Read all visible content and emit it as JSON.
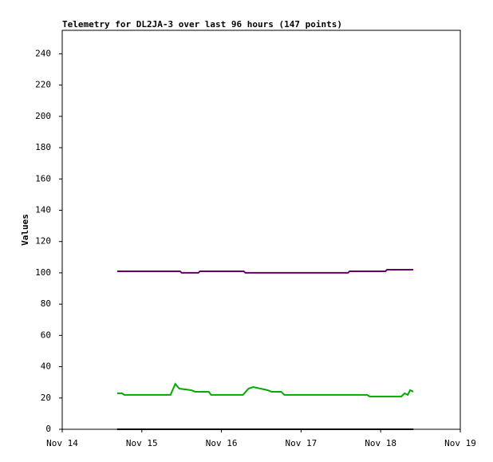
{
  "chart_data": {
    "type": "line",
    "title": "Telemetry for DL2JA-3 over last 96 hours (147 points)",
    "y_label": "Values",
    "xlim": [
      14,
      19
    ],
    "xticks": [
      {
        "value": 14,
        "label": "Nov 14"
      },
      {
        "value": 15,
        "label": "Nov 15"
      },
      {
        "value": 16,
        "label": "Nov 16"
      },
      {
        "value": 17,
        "label": "Nov 17"
      },
      {
        "value": 18,
        "label": "Nov 18"
      },
      {
        "value": 19,
        "label": "Nov 19"
      }
    ],
    "ylim": [
      0,
      255
    ],
    "yticks": [
      0,
      20,
      40,
      60,
      80,
      100,
      120,
      140,
      160,
      180,
      200,
      220,
      240
    ],
    "series": [
      {
        "color": "#660066",
        "x": [
          14.69,
          15.48,
          15.5,
          15.71,
          15.73,
          16.28,
          16.3,
          17.59,
          17.61,
          18.06,
          18.08,
          18.41
        ],
        "values": [
          101,
          101,
          100,
          100,
          101,
          101,
          100,
          100,
          101,
          101,
          102,
          102
        ]
      },
      {
        "color": "#00aa00",
        "x": [
          14.69,
          14.75,
          14.78,
          15.36,
          15.42,
          15.47,
          15.62,
          15.67,
          15.84,
          15.87,
          16.27,
          16.34,
          16.4,
          16.58,
          16.63,
          16.75,
          16.79,
          17.83,
          17.86,
          18.26,
          18.3,
          18.34,
          18.37,
          18.41
        ],
        "values": [
          23,
          23,
          22,
          22,
          29,
          26,
          25,
          24,
          24,
          22,
          22,
          26,
          27,
          25,
          24,
          24,
          22,
          22,
          21,
          21,
          23,
          22,
          25,
          24
        ]
      },
      {
        "color": "#000000",
        "x": [
          14.69,
          18.41
        ],
        "values": [
          0,
          0
        ]
      }
    ]
  }
}
